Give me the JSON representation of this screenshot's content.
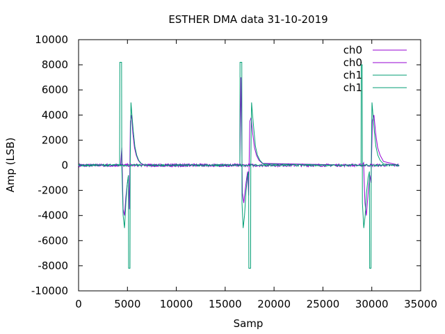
{
  "chart_data": {
    "type": "line",
    "title": "ESTHER  DMA data 31-10-2019",
    "xlabel": "Samp",
    "ylabel": "Amp (LSB)",
    "xlim": [
      0,
      35000
    ],
    "ylim": [
      -10000,
      10000
    ],
    "x_ticks": [
      "0",
      "5000",
      "10000",
      "15000",
      "20000",
      "25000",
      "30000",
      "35000"
    ],
    "y_ticks": [
      "-10000",
      "-8000",
      "-6000",
      "-4000",
      "-2000",
      "0",
      "2000",
      "4000",
      "6000",
      "8000",
      "10000"
    ],
    "grid": false,
    "legend_position": "top-right",
    "series": [
      {
        "name": "ch0",
        "color": "#9400d3",
        "x": [
          0,
          4300,
          4420,
          4560,
          4700,
          4840,
          4980,
          5100,
          5200,
          5300,
          5420,
          5560,
          5720,
          5900,
          6100,
          6350,
          6700,
          16500,
          16620,
          16760,
          16900,
          17040,
          17200,
          17300,
          17400,
          17520,
          17660,
          17820,
          18000,
          18200,
          18450,
          18800,
          28900,
          29020,
          29160,
          29300,
          29440,
          29600,
          29700,
          29800,
          29920,
          30060,
          30220,
          30400,
          30600,
          30850,
          31200,
          32800
        ],
        "y": [
          0,
          0,
          1400,
          -3500,
          -4000,
          -2500,
          -1500,
          -800,
          -3500,
          3500,
          4000,
          2500,
          1400,
          800,
          400,
          150,
          0,
          0,
          7000,
          -2200,
          -3000,
          -2000,
          -1000,
          -500,
          -2400,
          3500,
          3800,
          2500,
          1400,
          800,
          400,
          150,
          0,
          0,
          200,
          -3000,
          -4000,
          -2500,
          -1500,
          -800,
          -1400,
          3500,
          4000,
          2500,
          1400,
          800,
          300,
          0
        ]
      },
      {
        "name": "ch0",
        "color": "#9400d3",
        "x": [
          0,
          32800
        ],
        "y": [
          0,
          0
        ]
      },
      {
        "name": "ch1",
        "color": "#009e73",
        "x": [
          0,
          4200,
          4220,
          4400,
          4420,
          4560,
          4700,
          4840,
          4980,
          5100,
          5120,
          5260,
          5280,
          5360,
          5460,
          5600,
          5760,
          5950,
          6150,
          6400,
          6800,
          16500,
          16520,
          16700,
          16720,
          16840,
          16980,
          17120,
          17260,
          17400,
          17420,
          17600,
          17620,
          17700,
          17800,
          17950,
          18100,
          18300,
          18550,
          18900,
          28900,
          28920,
          29020,
          29040,
          29180,
          29320,
          29460,
          29620,
          29760,
          29780,
          29920,
          29940,
          30020,
          30120,
          30260,
          30420,
          30620,
          30850,
          31200,
          32800
        ],
        "y": [
          0,
          0,
          8200,
          8200,
          0,
          -4000,
          -5000,
          -3000,
          -1500,
          -800,
          -8200,
          -8200,
          0,
          5000,
          4000,
          2700,
          1500,
          800,
          400,
          150,
          0,
          0,
          8200,
          8200,
          -3000,
          -5000,
          -4000,
          -2200,
          -1000,
          -500,
          -8200,
          -8200,
          0,
          5000,
          4000,
          2700,
          1500,
          800,
          400,
          100,
          0,
          8000,
          8000,
          -3000,
          -5000,
          -4000,
          -2200,
          -1000,
          -500,
          -8200,
          -8200,
          0,
          5000,
          4000,
          2700,
          1500,
          800,
          400,
          100,
          0
        ]
      },
      {
        "name": "ch1",
        "color": "#009e73",
        "x": [
          0,
          32800
        ],
        "y": [
          0,
          0
        ]
      }
    ]
  }
}
